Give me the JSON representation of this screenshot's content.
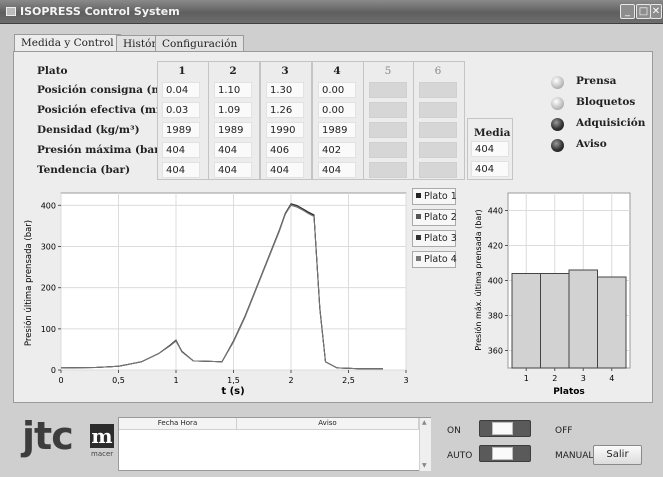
{
  "window": {
    "title": "ISOPRESS Control System",
    "controls": [
      "_",
      "□",
      "✕"
    ]
  },
  "tabs": [
    {
      "label": "Medida y Control",
      "active": true
    },
    {
      "label": "Histórico",
      "active": false
    },
    {
      "label": "Configuración",
      "active": false
    }
  ],
  "params": {
    "row_labels": [
      "Plato",
      "Posición consigna (mm)",
      "Posición efectiva (mm)",
      "Densidad (kg/m³)",
      "Presión máxima (bar)",
      "Tendencia (bar)"
    ],
    "columns": [
      {
        "header": "1",
        "enabled": true,
        "values": [
          "0.04",
          "0.03",
          "1989",
          "404",
          "404"
        ]
      },
      {
        "header": "2",
        "enabled": true,
        "values": [
          "1.10",
          "1.09",
          "1989",
          "404",
          "404"
        ]
      },
      {
        "header": "3",
        "enabled": true,
        "values": [
          "1.30",
          "1.26",
          "1990",
          "406",
          "404"
        ]
      },
      {
        "header": "4",
        "enabled": true,
        "values": [
          "0.00",
          "0.00",
          "1989",
          "402",
          "404"
        ]
      },
      {
        "header": "5",
        "enabled": false,
        "values": [
          "",
          "",
          "",
          "",
          ""
        ]
      },
      {
        "header": "6",
        "enabled": false,
        "values": [
          "",
          "",
          "",
          "",
          ""
        ]
      }
    ],
    "media": {
      "header": "Media",
      "values": [
        "404",
        "404"
      ]
    }
  },
  "indicators": [
    {
      "label": "Prensa",
      "state": "off"
    },
    {
      "label": "Bloquetos",
      "state": "off"
    },
    {
      "label": "Adquisición",
      "state": "on"
    },
    {
      "label": "Aviso",
      "state": "on"
    }
  ],
  "chart_data": [
    {
      "type": "line",
      "xlabel": "t (s)",
      "ylabel": "Presión última prensada (bar)",
      "xlim": [
        0,
        3
      ],
      "ylim": [
        0,
        430
      ],
      "xticks": [
        "0",
        "0,5",
        "1",
        "1,5",
        "2",
        "2,5",
        "3"
      ],
      "yticks": [
        "0",
        "100",
        "200",
        "300",
        "400"
      ],
      "grid": true,
      "legend_position": "right",
      "series": [
        {
          "name": "Plato 1",
          "x": [
            0,
            0.3,
            0.5,
            0.7,
            0.85,
            0.95,
            1.0,
            1.05,
            1.15,
            1.4,
            1.5,
            1.6,
            1.7,
            1.8,
            1.9,
            1.95,
            2.0,
            2.05,
            2.1,
            2.15,
            2.2,
            2.25,
            2.3,
            2.4,
            2.6,
            2.8
          ],
          "y": [
            5,
            6,
            9,
            20,
            40,
            60,
            72,
            45,
            22,
            20,
            70,
            130,
            200,
            270,
            340,
            380,
            402,
            398,
            390,
            382,
            375,
            150,
            20,
            5,
            3,
            3
          ]
        },
        {
          "name": "Plato 2",
          "x": [
            0,
            0.3,
            0.5,
            0.7,
            0.85,
            0.95,
            1.0,
            1.05,
            1.15,
            1.4,
            1.5,
            1.6,
            1.7,
            1.8,
            1.9,
            1.95,
            2.0,
            2.05,
            2.1,
            2.15,
            2.2,
            2.25,
            2.3,
            2.4,
            2.6,
            2.8
          ],
          "y": [
            5,
            6,
            9,
            20,
            40,
            60,
            70,
            46,
            22,
            20,
            68,
            128,
            198,
            268,
            338,
            379,
            400,
            396,
            389,
            381,
            374,
            148,
            20,
            5,
            3,
            3
          ]
        },
        {
          "name": "Plato 3",
          "x": [
            0,
            0.3,
            0.5,
            0.7,
            0.85,
            0.95,
            1.0,
            1.05,
            1.15,
            1.4,
            1.5,
            1.6,
            1.7,
            1.8,
            1.9,
            1.95,
            2.0,
            2.05,
            2.1,
            2.15,
            2.2,
            2.25,
            2.3,
            2.4,
            2.6,
            2.8
          ],
          "y": [
            5,
            6,
            9,
            20,
            40,
            61,
            73,
            45,
            22,
            20,
            71,
            131,
            201,
            271,
            341,
            381,
            404,
            400,
            392,
            384,
            377,
            152,
            20,
            5,
            3,
            3
          ]
        },
        {
          "name": "Plato 4",
          "x": [
            0,
            0.3,
            0.5,
            0.7,
            0.85,
            0.95,
            1.0,
            1.05,
            1.15,
            1.4,
            1.5,
            1.6,
            1.7,
            1.8,
            1.9,
            1.95,
            2.0,
            2.05,
            2.1,
            2.15,
            2.2,
            2.25,
            2.3,
            2.4,
            2.6,
            2.8
          ],
          "y": [
            5,
            6,
            9,
            20,
            40,
            59,
            71,
            44,
            22,
            20,
            69,
            129,
            199,
            269,
            339,
            378,
            401,
            397,
            389,
            380,
            373,
            149,
            20,
            5,
            3,
            3
          ]
        }
      ]
    },
    {
      "type": "bar",
      "xlabel": "Platos",
      "ylabel": "Presión máx. última prensada (bar)",
      "categories": [
        "1",
        "2",
        "3",
        "4"
      ],
      "values": [
        404,
        404,
        406,
        402
      ],
      "ylim": [
        350,
        450
      ],
      "yticks": [
        "360",
        "380",
        "400",
        "420",
        "440"
      ],
      "grid": true
    }
  ],
  "colors": {
    "series": [
      "#222222",
      "#555555",
      "#333333",
      "#777777"
    ],
    "bar_fill": "#d2d2d2"
  },
  "log": {
    "col_fecha": "Fecha Hora",
    "col_aviso": "Aviso"
  },
  "logo": {
    "text": "jtc",
    "mark": "m",
    "sub": "macer"
  },
  "switches": [
    {
      "left_label": "ON",
      "right_label": "OFF"
    },
    {
      "left_label": "AUTO",
      "right_label": "MANUAL"
    }
  ],
  "exit_button": "Salir"
}
